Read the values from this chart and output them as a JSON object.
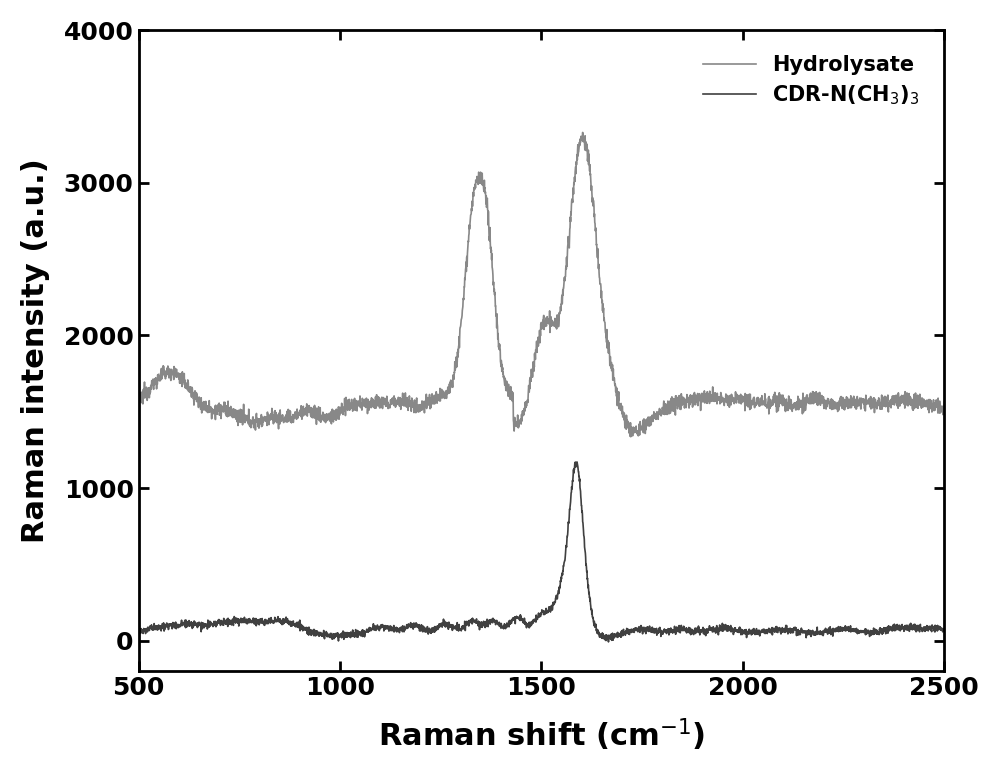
{
  "title": "",
  "xlabel": "Raman shift (cm$^{-1}$)",
  "ylabel": "Raman intensity (a.u.)",
  "xlim": [
    500,
    2500
  ],
  "ylim": [
    -200,
    4000
  ],
  "yticks": [
    0,
    1000,
    2000,
    3000,
    4000
  ],
  "xticks": [
    500,
    1000,
    1500,
    2000,
    2500
  ],
  "line1_color": "#888888",
  "line2_color": "#404040",
  "line1_label": "Hydrolysate",
  "line2_label": "CDR-N(CH$_3$)$_3$",
  "line1_linewidth": 1.2,
  "line2_linewidth": 1.2,
  "legend_fontsize": 15,
  "axis_label_fontsize": 22,
  "tick_fontsize": 18,
  "background_color": "#ffffff",
  "figsize": [
    10.0,
    7.74
  ],
  "dpi": 100
}
